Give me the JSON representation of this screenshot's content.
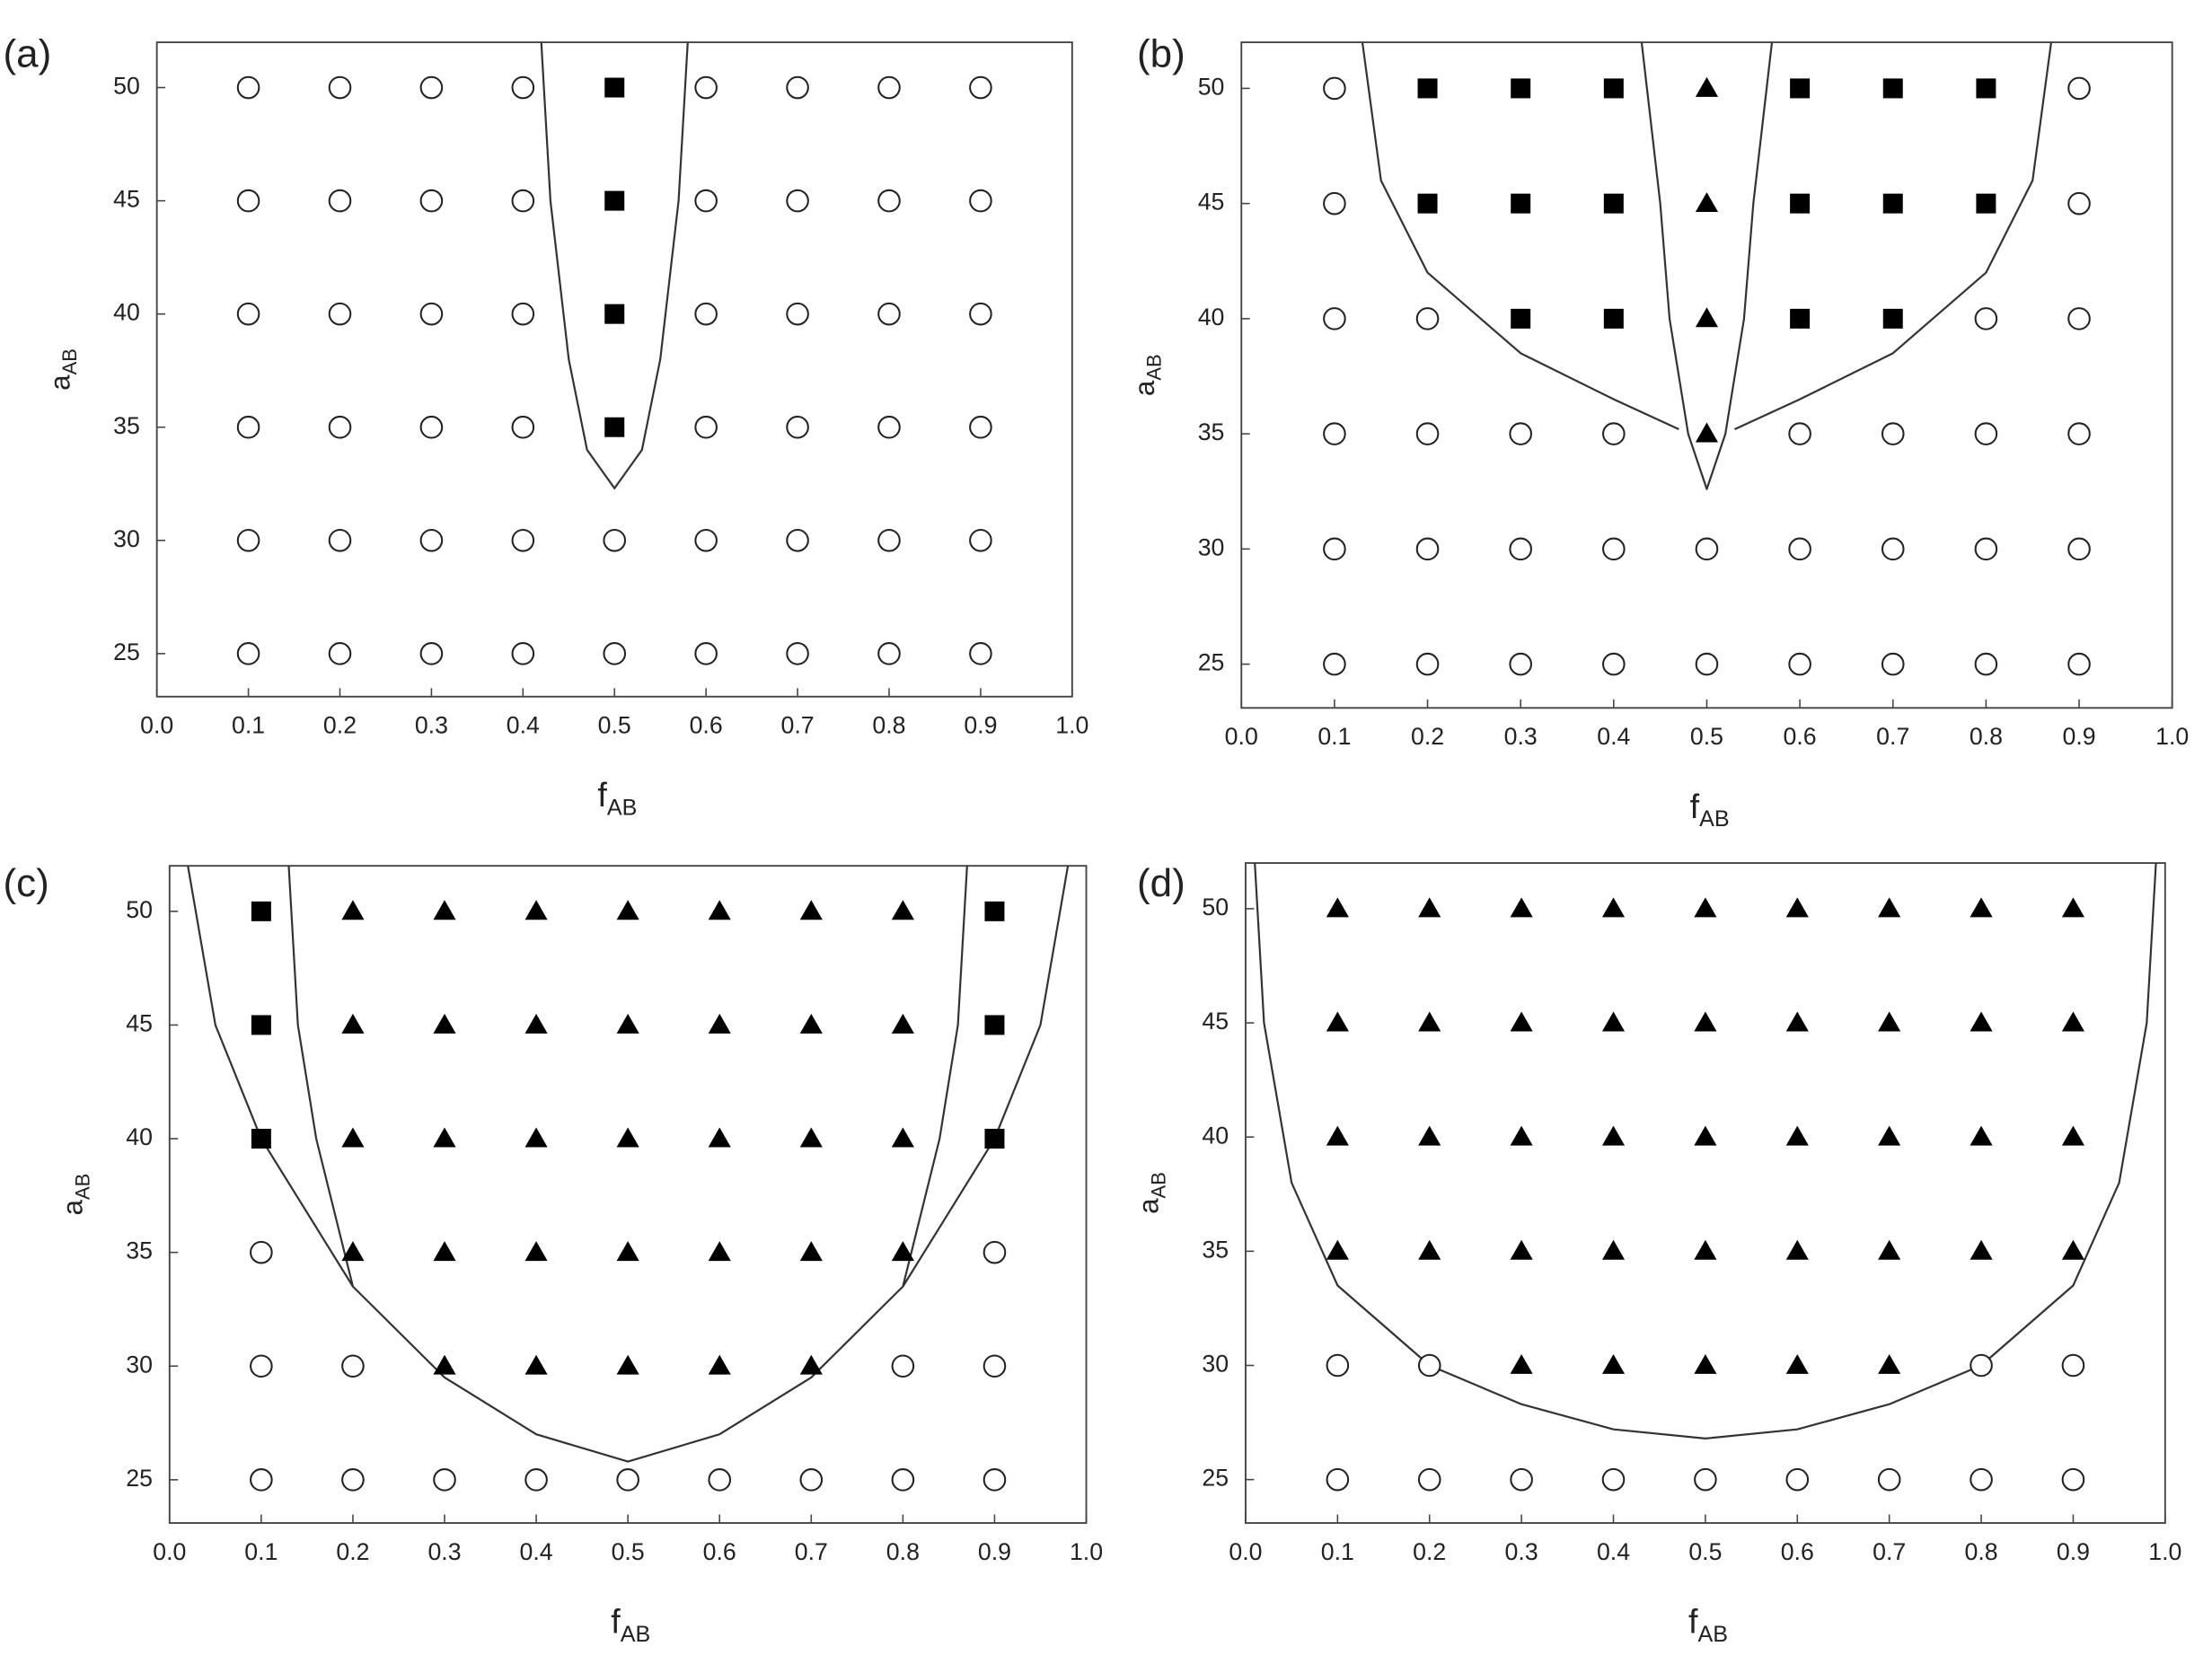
{
  "chart_data": [
    {
      "type": "scatter",
      "label": "(a)",
      "xlabel": "f",
      "xlabel_subscript": "AB",
      "ylabel": "a",
      "ylabel_subscript": "AB",
      "xlim": [
        0,
        1
      ],
      "ylim": [
        23.1,
        52
      ],
      "xticks": [
        {
          "value": 0,
          "label": "0.0"
        },
        0.1,
        0.2,
        0.3,
        0.4,
        0.5,
        0.6,
        0.7,
        0.8,
        0.9,
        {
          "value": 1,
          "label": "1.0"
        }
      ],
      "yticks": [
        25,
        30,
        35,
        40,
        45,
        50
      ],
      "series": [
        {
          "marker": "circle",
          "x": [
            0.1,
            0.2,
            0.3,
            0.4,
            0.6,
            0.7,
            0.8,
            0.9,
            0.1,
            0.2,
            0.3,
            0.4,
            0.6,
            0.7,
            0.8,
            0.9,
            0.1,
            0.2,
            0.3,
            0.4,
            0.6,
            0.7,
            0.8,
            0.9,
            0.1,
            0.2,
            0.3,
            0.4,
            0.6,
            0.7,
            0.8,
            0.9,
            0.1,
            0.2,
            0.3,
            0.4,
            0.5,
            0.6,
            0.7,
            0.8,
            0.9,
            0.1,
            0.2,
            0.3,
            0.4,
            0.5,
            0.6,
            0.7,
            0.8,
            0.9
          ],
          "values": [
            50,
            50,
            50,
            50,
            50,
            50,
            50,
            50,
            45,
            45,
            45,
            45,
            45,
            45,
            45,
            45,
            40,
            40,
            40,
            40,
            40,
            40,
            40,
            40,
            35,
            35,
            35,
            35,
            35,
            35,
            35,
            35,
            30,
            30,
            30,
            30,
            30,
            30,
            30,
            30,
            30,
            25,
            25,
            25,
            25,
            25,
            25,
            25,
            25,
            25
          ]
        },
        {
          "marker": "square",
          "x": [
            0.5,
            0.5,
            0.5,
            0.5
          ],
          "values": [
            50,
            45,
            40,
            35
          ]
        }
      ],
      "boundaries": [
        {
          "x": [
            0.42,
            0.43,
            0.45,
            0.47,
            0.5,
            0.53,
            0.55,
            0.57,
            0.58
          ],
          "values": [
            52,
            45,
            38,
            34,
            32.3,
            34,
            38,
            45,
            52
          ]
        }
      ]
    },
    {
      "type": "scatter",
      "label": "(b)",
      "xlabel": "f",
      "xlabel_subscript": "AB",
      "ylabel": "a",
      "ylabel_subscript": "AB",
      "xlim": [
        0,
        1
      ],
      "ylim": [
        23.1,
        52
      ],
      "xticks": [
        {
          "value": 0,
          "label": "0.0"
        },
        0.1,
        0.2,
        0.3,
        0.4,
        0.5,
        0.6,
        0.7,
        0.8,
        0.9,
        {
          "value": 1,
          "label": "1.0"
        }
      ],
      "yticks": [
        25,
        30,
        35,
        40,
        45,
        50
      ],
      "series": [
        {
          "marker": "circle",
          "x": [
            0.1,
            0.9,
            0.1,
            0.9,
            0.1,
            0.2,
            0.8,
            0.9,
            0.1,
            0.2,
            0.3,
            0.4,
            0.6,
            0.7,
            0.8,
            0.9,
            0.1,
            0.2,
            0.3,
            0.4,
            0.5,
            0.6,
            0.7,
            0.8,
            0.9,
            0.1,
            0.2,
            0.3,
            0.4,
            0.5,
            0.6,
            0.7,
            0.8,
            0.9
          ],
          "values": [
            50,
            50,
            45,
            45,
            40,
            40,
            40,
            40,
            35,
            35,
            35,
            35,
            35,
            35,
            35,
            35,
            30,
            30,
            30,
            30,
            30,
            30,
            30,
            30,
            30,
            25,
            25,
            25,
            25,
            25,
            25,
            25,
            25,
            25
          ]
        },
        {
          "marker": "square",
          "x": [
            0.2,
            0.3,
            0.4,
            0.6,
            0.7,
            0.8,
            0.2,
            0.3,
            0.4,
            0.6,
            0.7,
            0.8,
            0.3,
            0.4,
            0.6,
            0.7
          ],
          "values": [
            50,
            50,
            50,
            50,
            50,
            50,
            45,
            45,
            45,
            45,
            45,
            45,
            40,
            40,
            40,
            40
          ]
        },
        {
          "marker": "triangle",
          "x": [
            0.5,
            0.5,
            0.5,
            0.5
          ],
          "values": [
            50,
            45,
            40,
            35
          ]
        }
      ],
      "boundaries": [
        {
          "x": [
            0.13,
            0.15,
            0.2,
            0.3,
            0.4,
            0.47
          ],
          "values": [
            52,
            46,
            42,
            38.5,
            36.5,
            35.2
          ]
        },
        {
          "x": [
            0.87,
            0.85,
            0.8,
            0.7,
            0.6,
            0.53
          ],
          "values": [
            52,
            46,
            42,
            38.5,
            36.5,
            35.2
          ]
        },
        {
          "x": [
            0.43,
            0.45,
            0.46,
            0.48,
            0.5,
            0.52,
            0.54,
            0.55,
            0.57
          ],
          "values": [
            52,
            45,
            40,
            35,
            32.6,
            35,
            40,
            45,
            52
          ]
        }
      ]
    },
    {
      "type": "scatter",
      "label": "(c)",
      "xlabel": "f",
      "xlabel_subscript": "AB",
      "ylabel": "a",
      "ylabel_subscript": "AB",
      "xlim": [
        0,
        1
      ],
      "ylim": [
        23.1,
        52
      ],
      "xticks": [
        {
          "value": 0,
          "label": "0.0"
        },
        0.1,
        0.2,
        0.3,
        0.4,
        0.5,
        0.6,
        0.7,
        0.8,
        0.9,
        {
          "value": 1,
          "label": "1.0"
        }
      ],
      "yticks": [
        25,
        30,
        35,
        40,
        45,
        50
      ],
      "series": [
        {
          "marker": "circle",
          "x": [
            0.1,
            0.9,
            0.1,
            0.2,
            0.8,
            0.9,
            0.1,
            0.2,
            0.3,
            0.4,
            0.5,
            0.6,
            0.7,
            0.8,
            0.9
          ],
          "values": [
            35,
            35,
            30,
            30,
            30,
            30,
            25,
            25,
            25,
            25,
            25,
            25,
            25,
            25,
            25
          ]
        },
        {
          "marker": "square",
          "x": [
            0.1,
            0.1,
            0.1,
            0.9,
            0.9,
            0.9
          ],
          "values": [
            50,
            45,
            40,
            50,
            45,
            40
          ]
        },
        {
          "marker": "triangle",
          "x": [
            0.2,
            0.3,
            0.4,
            0.5,
            0.6,
            0.7,
            0.8,
            0.2,
            0.3,
            0.4,
            0.5,
            0.6,
            0.7,
            0.8,
            0.2,
            0.3,
            0.4,
            0.5,
            0.6,
            0.7,
            0.8,
            0.2,
            0.3,
            0.4,
            0.5,
            0.6,
            0.7,
            0.8,
            0.3,
            0.4,
            0.5,
            0.6,
            0.7
          ],
          "values": [
            50,
            50,
            50,
            50,
            50,
            50,
            50,
            45,
            45,
            45,
            45,
            45,
            45,
            45,
            40,
            40,
            40,
            40,
            40,
            40,
            40,
            35,
            35,
            35,
            35,
            35,
            35,
            35,
            30,
            30,
            30,
            30,
            30
          ]
        }
      ],
      "boundaries": [
        {
          "x": [
            0.02,
            0.05,
            0.1,
            0.2,
            0.3,
            0.4,
            0.5,
            0.6,
            0.7,
            0.8,
            0.9,
            0.95,
            0.98
          ],
          "values": [
            52,
            45,
            40,
            33.5,
            29.5,
            27,
            25.8,
            27,
            29.5,
            33.5,
            40,
            45,
            52
          ]
        },
        {
          "x": [
            0.13,
            0.14,
            0.16,
            0.2
          ],
          "values": [
            52,
            45,
            40,
            33.5
          ]
        },
        {
          "x": [
            0.87,
            0.86,
            0.84,
            0.8
          ],
          "values": [
            52,
            45,
            40,
            33.5
          ]
        }
      ]
    },
    {
      "type": "scatter",
      "label": "(d)",
      "xlabel": "f",
      "xlabel_subscript": "AB",
      "ylabel": "a",
      "ylabel_subscript": "AB",
      "xlim": [
        0,
        1
      ],
      "ylim": [
        23.1,
        52
      ],
      "xticks": [
        {
          "value": 0,
          "label": "0.0"
        },
        0.1,
        0.2,
        0.3,
        0.4,
        0.5,
        0.6,
        0.7,
        0.8,
        0.9,
        {
          "value": 1,
          "label": "1.0"
        }
      ],
      "yticks": [
        25,
        30,
        35,
        40,
        45,
        50
      ],
      "series": [
        {
          "marker": "circle",
          "x": [
            0.1,
            0.2,
            0.8,
            0.9,
            0.1,
            0.2,
            0.3,
            0.4,
            0.5,
            0.6,
            0.7,
            0.8,
            0.9
          ],
          "values": [
            30,
            30,
            30,
            30,
            25,
            25,
            25,
            25,
            25,
            25,
            25,
            25,
            25
          ]
        },
        {
          "marker": "triangle",
          "x": [
            0.1,
            0.2,
            0.3,
            0.4,
            0.5,
            0.6,
            0.7,
            0.8,
            0.9,
            0.1,
            0.2,
            0.3,
            0.4,
            0.5,
            0.6,
            0.7,
            0.8,
            0.9,
            0.1,
            0.2,
            0.3,
            0.4,
            0.5,
            0.6,
            0.7,
            0.8,
            0.9,
            0.1,
            0.2,
            0.3,
            0.4,
            0.5,
            0.6,
            0.7,
            0.8,
            0.9,
            0.3,
            0.4,
            0.5,
            0.6,
            0.7
          ],
          "values": [
            50,
            50,
            50,
            50,
            50,
            50,
            50,
            50,
            50,
            45,
            45,
            45,
            45,
            45,
            45,
            45,
            45,
            45,
            40,
            40,
            40,
            40,
            40,
            40,
            40,
            40,
            40,
            35,
            35,
            35,
            35,
            35,
            35,
            35,
            35,
            35,
            30,
            30,
            30,
            30,
            30
          ]
        }
      ],
      "boundaries": [
        {
          "x": [
            0.01,
            0.02,
            0.05,
            0.1,
            0.2,
            0.3,
            0.4,
            0.5,
            0.6,
            0.7,
            0.8,
            0.9,
            0.95,
            0.98,
            0.99
          ],
          "values": [
            52,
            45,
            38,
            33.5,
            30,
            28.3,
            27.2,
            26.8,
            27.2,
            28.3,
            30,
            33.5,
            38,
            45,
            52
          ]
        }
      ]
    }
  ]
}
